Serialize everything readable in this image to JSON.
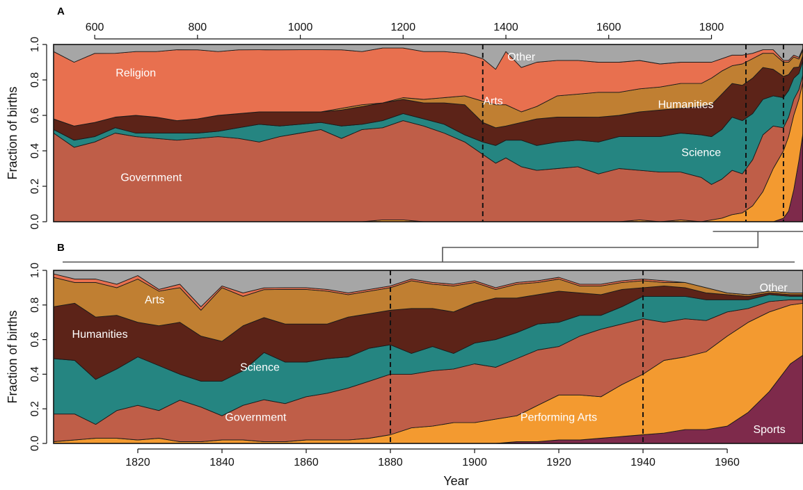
{
  "colors": {
    "Sports": "#7e2a4b",
    "Performing Arts": "#f39a30",
    "Government": "#bf5e48",
    "Science": "#258581",
    "Humanities": "#5c2318",
    "Arts": "#c07f32",
    "Religion": "#e8704f",
    "Other": "#a6a6a6"
  },
  "chart_data": [
    {
      "panel": "A",
      "type": "area",
      "stacked": true,
      "normalized": true,
      "xlabel": "",
      "ylabel": "Fraction of births",
      "xlim": [
        520,
        1978
      ],
      "ylim": [
        0,
        1
      ],
      "xticks": [
        600,
        800,
        1000,
        1200,
        1400,
        1600,
        1800
      ],
      "xtick_labels": [
        "600",
        "800",
        "1000",
        "1200",
        "1400",
        "1600",
        "1800"
      ],
      "yticks": [
        0.0,
        0.2,
        0.4,
        0.6,
        0.8,
        1.0
      ],
      "ytick_labels": [
        "0.0",
        "0.2",
        "0.4",
        "0.6",
        "0.8",
        "1.0"
      ],
      "xaxis_position": "top",
      "dashed_lines": [
        1355,
        1867,
        1940
      ],
      "area_labels": [
        {
          "text": "Religion",
          "x": 680,
          "y": 0.84
        },
        {
          "text": "Other",
          "x": 1430,
          "y": 0.93
        },
        {
          "text": "Arts",
          "x": 1375,
          "y": 0.68
        },
        {
          "text": "Humanities",
          "x": 1750,
          "y": 0.66
        },
        {
          "text": "Science",
          "x": 1780,
          "y": 0.39
        },
        {
          "text": "Government",
          "x": 710,
          "y": 0.25
        }
      ],
      "x": [
        520,
        560,
        600,
        640,
        680,
        720,
        760,
        800,
        840,
        880,
        920,
        960,
        1000,
        1040,
        1080,
        1120,
        1160,
        1200,
        1240,
        1280,
        1320,
        1355,
        1380,
        1400,
        1430,
        1460,
        1500,
        1540,
        1580,
        1620,
        1660,
        1700,
        1740,
        1780,
        1800,
        1820,
        1840,
        1860,
        1880,
        1900,
        1920,
        1940,
        1950,
        1960,
        1970,
        1978
      ],
      "series": [
        {
          "name": "Sports",
          "values": [
            0,
            0,
            0,
            0,
            0,
            0,
            0,
            0,
            0,
            0,
            0,
            0,
            0,
            0,
            0,
            0,
            0,
            0,
            0,
            0,
            0,
            0,
            0,
            0,
            0,
            0,
            0,
            0,
            0,
            0,
            0,
            0,
            0,
            0,
            0,
            0,
            0,
            0,
            0,
            0,
            0,
            0.02,
            0.06,
            0.18,
            0.38,
            0.5
          ]
        },
        {
          "name": "Performing Arts",
          "values": [
            0,
            0,
            0,
            0,
            0,
            0,
            0,
            0,
            0,
            0,
            0,
            0,
            0,
            0,
            0,
            0,
            0.01,
            0.01,
            0,
            0,
            0,
            0,
            0,
            0,
            0,
            0,
            0,
            0,
            0,
            0,
            0.01,
            0,
            0.01,
            0,
            0.01,
            0.02,
            0.04,
            0.05,
            0.09,
            0.17,
            0.3,
            0.38,
            0.42,
            0.42,
            0.38,
            0.29
          ]
        },
        {
          "name": "Government",
          "values": [
            0.5,
            0.42,
            0.45,
            0.5,
            0.48,
            0.47,
            0.46,
            0.47,
            0.48,
            0.47,
            0.45,
            0.48,
            0.5,
            0.52,
            0.47,
            0.52,
            0.52,
            0.56,
            0.54,
            0.5,
            0.45,
            0.38,
            0.33,
            0.36,
            0.31,
            0.29,
            0.3,
            0.31,
            0.27,
            0.3,
            0.28,
            0.28,
            0.27,
            0.25,
            0.2,
            0.22,
            0.25,
            0.22,
            0.26,
            0.32,
            0.24,
            0.13,
            0.11,
            0.09,
            0.06,
            0.04
          ]
        },
        {
          "name": "Science",
          "values": [
            0.02,
            0.04,
            0.03,
            0.03,
            0.02,
            0.03,
            0.04,
            0.03,
            0.03,
            0.06,
            0.1,
            0.06,
            0.05,
            0.04,
            0.07,
            0.03,
            0.04,
            0.04,
            0.04,
            0.05,
            0.04,
            0.07,
            0.1,
            0.1,
            0.15,
            0.14,
            0.15,
            0.15,
            0.18,
            0.18,
            0.19,
            0.2,
            0.22,
            0.24,
            0.27,
            0.28,
            0.3,
            0.3,
            0.26,
            0.2,
            0.17,
            0.17,
            0.15,
            0.12,
            0.1,
            0.08
          ]
        },
        {
          "name": "Humanities",
          "values": [
            0.06,
            0.08,
            0.08,
            0.06,
            0.1,
            0.09,
            0.07,
            0.08,
            0.09,
            0.08,
            0.07,
            0.08,
            0.07,
            0.06,
            0.09,
            0.1,
            0.1,
            0.08,
            0.09,
            0.12,
            0.17,
            0.11,
            0.1,
            0.08,
            0.1,
            0.15,
            0.14,
            0.13,
            0.14,
            0.12,
            0.14,
            0.15,
            0.14,
            0.16,
            0.18,
            0.2,
            0.19,
            0.2,
            0.2,
            0.18,
            0.15,
            0.12,
            0.09,
            0.06,
            0.04,
            0.03
          ]
        },
        {
          "name": "Arts",
          "values": [
            0,
            0,
            0,
            0,
            0,
            0,
            0,
            0,
            0,
            0,
            0,
            0,
            0,
            0,
            0.01,
            0.01,
            0,
            0.01,
            0.02,
            0.03,
            0.05,
            0.12,
            0.13,
            0.12,
            0.06,
            0.07,
            0.12,
            0.13,
            0.14,
            0.13,
            0.13,
            0.13,
            0.14,
            0.13,
            0.15,
            0.13,
            0.1,
            0.12,
            0.11,
            0.08,
            0.09,
            0.08,
            0.07,
            0.06,
            0.05,
            0.03
          ]
        },
        {
          "name": "Religion",
          "values": [
            0.38,
            0.36,
            0.39,
            0.36,
            0.36,
            0.37,
            0.4,
            0.39,
            0.36,
            0.36,
            0.35,
            0.35,
            0.35,
            0.35,
            0.33,
            0.3,
            0.31,
            0.28,
            0.27,
            0.26,
            0.24,
            0.24,
            0.2,
            0.3,
            0.25,
            0.25,
            0.2,
            0.19,
            0.17,
            0.17,
            0.16,
            0.13,
            0.12,
            0.12,
            0.09,
            0.07,
            0.06,
            0.05,
            0.03,
            0.02,
            0.02,
            0.01,
            0.01,
            0.01,
            0.01,
            0.01
          ]
        },
        {
          "name": "Other",
          "values": [
            0.04,
            0.1,
            0.05,
            0.05,
            0.04,
            0.04,
            0.03,
            0.03,
            0.04,
            0.03,
            0.03,
            0.03,
            0.03,
            0.03,
            0.03,
            0.04,
            0.02,
            0.02,
            0.04,
            0.04,
            0.05,
            0.08,
            0.14,
            0.04,
            0.13,
            0.1,
            0.09,
            0.09,
            0.1,
            0.1,
            0.09,
            0.11,
            0.1,
            0.1,
            0.1,
            0.08,
            0.06,
            0.06,
            0.05,
            0.03,
            0.03,
            0.09,
            0.09,
            0.06,
            0.08,
            0.02
          ]
        }
      ]
    },
    {
      "panel": "B",
      "type": "area",
      "stacked": true,
      "normalized": true,
      "xlabel": "Year",
      "ylabel": "Fraction of births",
      "xlim": [
        1800,
        1978
      ],
      "ylim": [
        0,
        1
      ],
      "xticks": [
        1820,
        1840,
        1860,
        1880,
        1900,
        1920,
        1940,
        1960
      ],
      "xtick_labels": [
        "1820",
        "1840",
        "1860",
        "1880",
        "1900",
        "1920",
        "1940",
        "1960"
      ],
      "yticks": [
        0.0,
        0.2,
        0.4,
        0.6,
        0.8,
        1.0
      ],
      "ytick_labels": [
        "0.0",
        "0.2",
        "0.4",
        "0.6",
        "0.8",
        "1.0"
      ],
      "xaxis_position": "bottom",
      "dashed_lines": [
        1880,
        1940
      ],
      "area_labels": [
        {
          "text": "Arts",
          "x": 1824,
          "y": 0.83
        },
        {
          "text": "Other",
          "x": 1971,
          "y": 0.9
        },
        {
          "text": "Humanities",
          "x": 1811,
          "y": 0.63
        },
        {
          "text": "Science",
          "x": 1849,
          "y": 0.44
        },
        {
          "text": "Government",
          "x": 1848,
          "y": 0.15
        },
        {
          "text": "Performing Arts",
          "x": 1920,
          "y": 0.15
        },
        {
          "text": "Sports",
          "x": 1970,
          "y": 0.08
        }
      ],
      "x": [
        1800,
        1805,
        1810,
        1815,
        1820,
        1825,
        1830,
        1835,
        1840,
        1845,
        1850,
        1855,
        1860,
        1865,
        1870,
        1875,
        1880,
        1885,
        1890,
        1895,
        1900,
        1905,
        1910,
        1915,
        1920,
        1925,
        1930,
        1935,
        1940,
        1945,
        1950,
        1955,
        1960,
        1965,
        1970,
        1975,
        1978
      ],
      "series": [
        {
          "name": "Sports",
          "values": [
            0,
            0,
            0,
            0,
            0,
            0,
            0,
            0,
            0,
            0,
            0,
            0,
            0,
            0,
            0,
            0,
            0,
            0,
            0,
            0,
            0,
            0,
            0.01,
            0.01,
            0.02,
            0.02,
            0.03,
            0.04,
            0.05,
            0.06,
            0.08,
            0.08,
            0.1,
            0.18,
            0.3,
            0.46,
            0.51
          ]
        },
        {
          "name": "Performing Arts",
          "values": [
            0.01,
            0.02,
            0.03,
            0.03,
            0.02,
            0.03,
            0.01,
            0.01,
            0.02,
            0.02,
            0.01,
            0.01,
            0.02,
            0.02,
            0.02,
            0.03,
            0.05,
            0.09,
            0.1,
            0.12,
            0.12,
            0.14,
            0.15,
            0.21,
            0.26,
            0.26,
            0.24,
            0.3,
            0.35,
            0.42,
            0.42,
            0.45,
            0.52,
            0.52,
            0.46,
            0.34,
            0.3
          ]
        },
        {
          "name": "Government",
          "values": [
            0.16,
            0.15,
            0.08,
            0.16,
            0.2,
            0.16,
            0.24,
            0.2,
            0.14,
            0.2,
            0.24,
            0.22,
            0.25,
            0.27,
            0.3,
            0.33,
            0.35,
            0.31,
            0.32,
            0.31,
            0.34,
            0.3,
            0.33,
            0.32,
            0.28,
            0.34,
            0.39,
            0.35,
            0.32,
            0.22,
            0.22,
            0.18,
            0.14,
            0.08,
            0.06,
            0.03,
            0.02
          ]
        },
        {
          "name": "Science",
          "values": [
            0.32,
            0.31,
            0.26,
            0.24,
            0.28,
            0.26,
            0.15,
            0.15,
            0.2,
            0.2,
            0.27,
            0.24,
            0.2,
            0.2,
            0.18,
            0.19,
            0.17,
            0.12,
            0.14,
            0.09,
            0.12,
            0.16,
            0.15,
            0.15,
            0.14,
            0.12,
            0.08,
            0.1,
            0.13,
            0.15,
            0.13,
            0.12,
            0.07,
            0.05,
            0.04,
            0.02,
            0.02
          ]
        },
        {
          "name": "Humanities",
          "values": [
            0.3,
            0.33,
            0.36,
            0.31,
            0.2,
            0.23,
            0.3,
            0.26,
            0.23,
            0.26,
            0.2,
            0.22,
            0.22,
            0.2,
            0.23,
            0.2,
            0.2,
            0.26,
            0.22,
            0.24,
            0.23,
            0.24,
            0.2,
            0.17,
            0.18,
            0.13,
            0.12,
            0.1,
            0.05,
            0.06,
            0.05,
            0.04,
            0.03,
            0.02,
            0.01,
            0.01,
            0.01
          ]
        },
        {
          "name": "Arts",
          "values": [
            0.17,
            0.12,
            0.2,
            0.16,
            0.25,
            0.2,
            0.2,
            0.15,
            0.31,
            0.17,
            0.16,
            0.2,
            0.2,
            0.19,
            0.13,
            0.13,
            0.13,
            0.16,
            0.14,
            0.15,
            0.12,
            0.05,
            0.08,
            0.07,
            0.07,
            0.04,
            0.05,
            0.04,
            0.04,
            0.02,
            0.03,
            0.03,
            0.01,
            0.01,
            0.01,
            0.01,
            0.01
          ]
        },
        {
          "name": "Religion",
          "values": [
            0.02,
            0.02,
            0.02,
            0.02,
            0.02,
            0.01,
            0.02,
            0.02,
            0.01,
            0.02,
            0.01,
            0.01,
            0.01,
            0.01,
            0.01,
            0.01,
            0.01,
            0.01,
            0.01,
            0.01,
            0.01,
            0.01,
            0.01,
            0.01,
            0.01,
            0.01,
            0.01,
            0.01,
            0.01,
            0.01,
            0,
            0,
            0,
            0,
            0,
            0,
            0
          ]
        },
        {
          "name": "Other",
          "values": [
            0.02,
            0.05,
            0.05,
            0.08,
            0.03,
            0.11,
            0.08,
            0.21,
            0.09,
            0.13,
            0.1,
            0.1,
            0.1,
            0.11,
            0.13,
            0.11,
            0.09,
            0.05,
            0.07,
            0.08,
            0.06,
            0.1,
            0.07,
            0.06,
            0.04,
            0.08,
            0.08,
            0.06,
            0.05,
            0.06,
            0.07,
            0.1,
            0.13,
            0.14,
            0.12,
            0.13,
            0.13
          ]
        }
      ]
    }
  ]
}
